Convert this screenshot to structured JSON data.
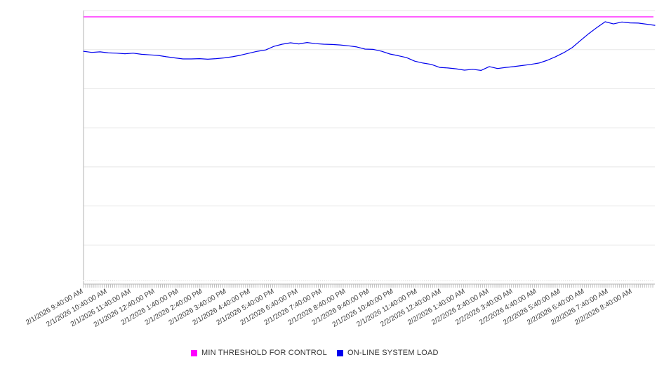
{
  "chart_data": {
    "type": "line",
    "title": "",
    "x_axis": {
      "labels": [
        "2/1/2026 9:40:00 AM",
        "2/1/2026 10:40:00 AM",
        "2/1/2026 11:40:00 AM",
        "2/1/2026 12:40:00 PM",
        "2/1/2026 1:40:00 PM",
        "2/1/2026 2:40:00 PM",
        "2/1/2026 3:40:00 PM",
        "2/1/2026 4:40:00 PM",
        "2/1/2026 5:40:00 PM",
        "2/1/2026 6:40:00 PM",
        "2/1/2026 7:40:00 PM",
        "2/1/2026 8:40:00 PM",
        "2/1/2026 9:40:00 PM",
        "2/1/2026 10:40:00 PM",
        "2/1/2026 11:40:00 PM",
        "2/2/2026 12:40:00 AM",
        "2/2/2026 1:40:00 AM",
        "2/2/2026 2:40:00 AM",
        "2/2/2026 3:40:00 AM",
        "2/2/2026 4:40:00 AM",
        "2/2/2026 5:40:00 AM",
        "2/2/2026 6:40:00 AM",
        "2/2/2026 7:40:00 AM",
        "2/2/2026 8:40:00 AM"
      ],
      "tick_label_rotation_deg": -30,
      "minor_ticks": "dense",
      "tick_label_color": "#404040"
    },
    "y_axis": {
      "tick_labels_visible": false,
      "display_range": [
        0,
        100
      ],
      "gridlines": 7,
      "grid_color": "#e7e7e7",
      "axis_color": "#b3b3b3",
      "value_scale_note": "relative units (no y-axis labels shown in chart)"
    },
    "series": [
      {
        "name": "MIN THRESHOLD FOR CONTROL",
        "color": "#ff00ff",
        "style": "horizontal-threshold",
        "value": 97.7
      },
      {
        "name": "ON-LINE SYSTEM LOAD",
        "color": "#0000ee",
        "values": [
          85.1,
          84.7,
          84.9,
          84.5,
          84.4,
          84.2,
          84.4,
          84.0,
          83.8,
          83.6,
          83.1,
          82.7,
          82.3,
          82.3,
          82.4,
          82.2,
          82.4,
          82.7,
          83.1,
          83.7,
          84.4,
          85.1,
          85.6,
          86.9,
          87.7,
          88.2,
          87.8,
          88.3,
          87.9,
          87.7,
          87.6,
          87.4,
          87.1,
          86.7,
          85.9,
          85.8,
          85.1,
          84.1,
          83.5,
          82.8,
          81.5,
          80.8,
          80.3,
          79.2,
          79.0,
          78.7,
          78.2,
          78.5,
          78.1,
          79.5,
          78.8,
          79.2,
          79.5,
          79.9,
          80.3,
          80.8,
          81.8,
          83.1,
          84.6,
          86.4,
          89.0,
          91.5,
          93.8,
          95.9,
          95.1,
          95.8,
          95.5,
          95.4,
          95.0,
          94.6
        ]
      }
    ],
    "legend": {
      "position": "bottom-center",
      "entries": [
        "MIN THRESHOLD FOR CONTROL",
        "ON-LINE SYSTEM LOAD"
      ],
      "text_color": "#333333"
    }
  }
}
